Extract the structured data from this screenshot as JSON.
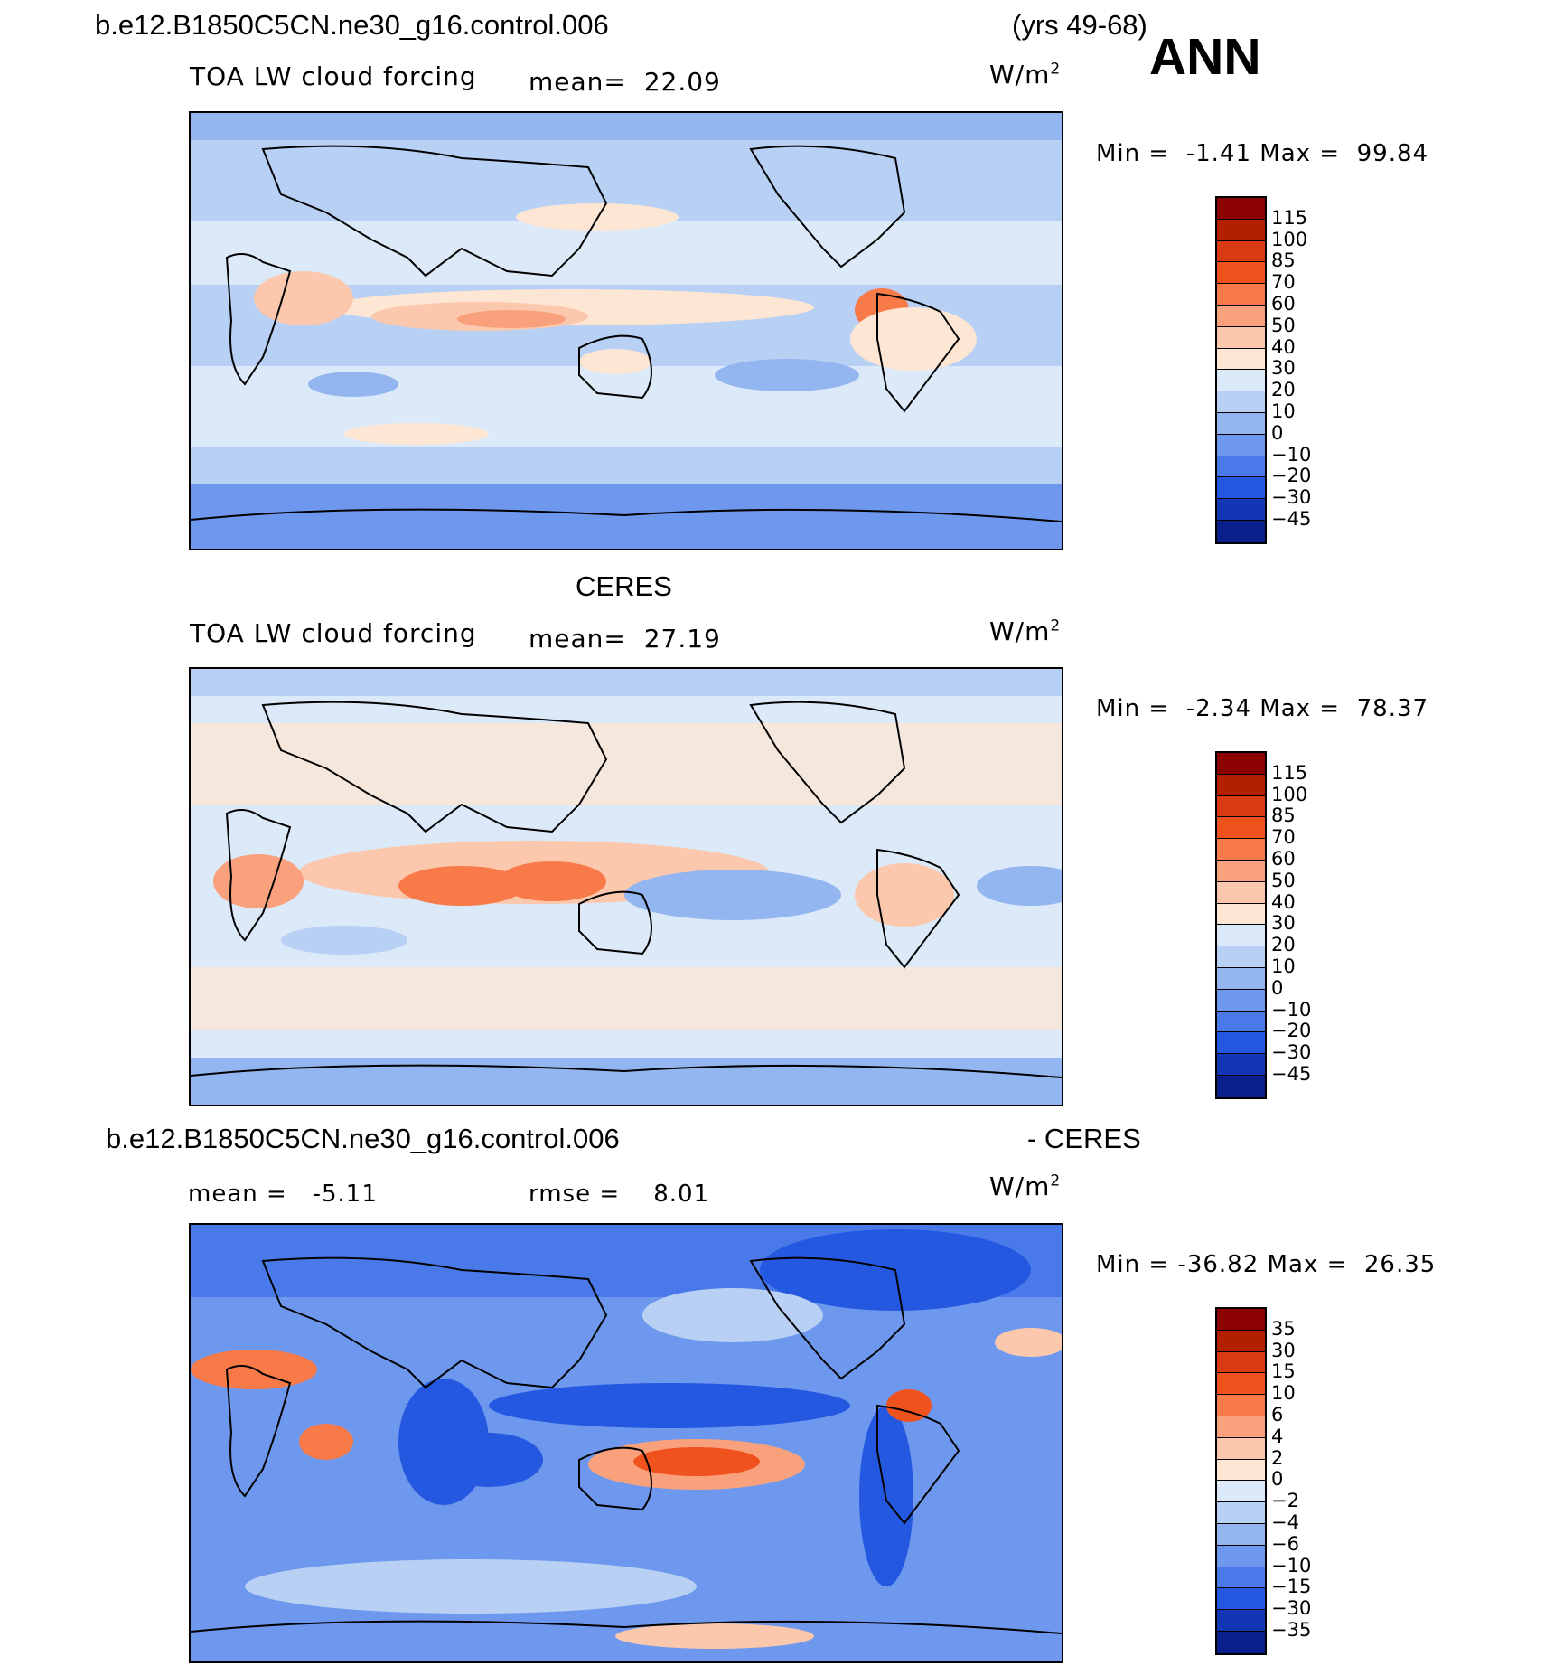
{
  "header": {
    "case_name": "b.e12.B1850C5CN.ne30_g16.control.006",
    "years": "(yrs 49-68)",
    "season": "ANN"
  },
  "panels": [
    {
      "id": "model",
      "variable": "TOA LW cloud forcing",
      "mean_label": "mean=",
      "mean_value": "22.09",
      "units_base": "W/m",
      "units_exp": "2",
      "min_label": "Min =",
      "min_value": "-1.41",
      "max_label": "Max =",
      "max_value": "99.84"
    },
    {
      "id": "obs",
      "title": "CERES",
      "variable": "TOA LW cloud forcing",
      "mean_label": "mean=",
      "mean_value": "27.19",
      "units_base": "W/m",
      "units_exp": "2",
      "min_label": "Min =",
      "min_value": "-2.34",
      "max_label": "Max =",
      "max_value": "78.37"
    },
    {
      "id": "diff",
      "title_left": "b.e12.B1850C5CN.ne30_g16.control.006",
      "title_right": "- CERES",
      "mean_label": "mean =",
      "mean_value": "-5.11",
      "rmse_label": "rmse =",
      "rmse_value": "8.01",
      "units_base": "W/m",
      "units_exp": "2",
      "min_label": "Min =",
      "min_value": "-36.82",
      "max_label": "Max =",
      "max_value": "26.35"
    }
  ],
  "colorbars": {
    "main_levels": [
      "115",
      "100",
      "85",
      "70",
      "60",
      "50",
      "40",
      "30",
      "20",
      "10",
      "0",
      "-10",
      "-20",
      "-30",
      "-45"
    ],
    "diff_levels": [
      "35",
      "30",
      "15",
      "10",
      "6",
      "4",
      "2",
      "0",
      "-2",
      "-4",
      "-6",
      "-10",
      "-15",
      "-30",
      "-35"
    ],
    "colors": [
      "#8b0000",
      "#b22000",
      "#d93a12",
      "#f0521e",
      "#f87a48",
      "#f9a17c",
      "#fbc8ad",
      "#fde6d4",
      "#dbe9f8",
      "#b7d0f4",
      "#93b6f1",
      "#6d98ee",
      "#4a7aea",
      "#2458e0",
      "#1236b4",
      "#0a1e8c"
    ]
  }
}
